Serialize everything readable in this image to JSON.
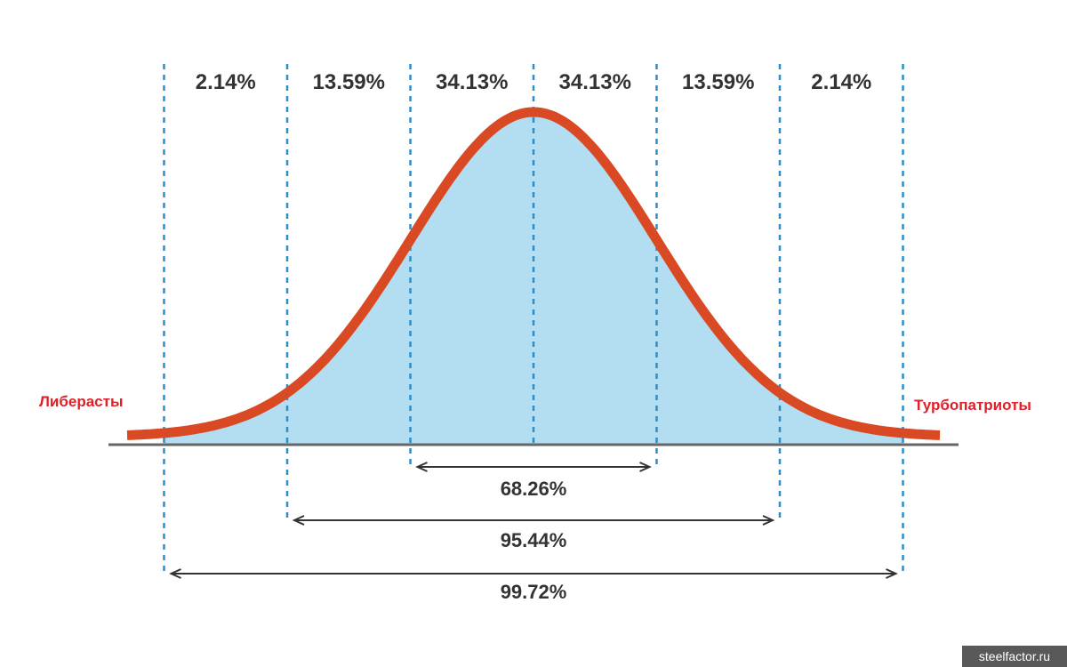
{
  "chart_data": {
    "type": "area",
    "distribution": "normal",
    "x_sigma_lines": [
      -3,
      -2,
      -1,
      0,
      1,
      2,
      3
    ],
    "xlim": [
      -3.3,
      3.3
    ],
    "bands": [
      {
        "from": -3,
        "to": -2,
        "label": "2.14%"
      },
      {
        "from": -2,
        "to": -1,
        "label": "13.59%"
      },
      {
        "from": -1,
        "to": 0,
        "label": "34.13%"
      },
      {
        "from": 0,
        "to": 1,
        "label": "34.13%"
      },
      {
        "from": 1,
        "to": 2,
        "label": "13.59%"
      },
      {
        "from": 2,
        "to": 3,
        "label": "2.14%"
      }
    ],
    "ranges": [
      {
        "from": -1,
        "to": 1,
        "label": "68.26%"
      },
      {
        "from": -2,
        "to": 2,
        "label": "95.44%"
      },
      {
        "from": -3,
        "to": 3,
        "label": "99.72%"
      }
    ],
    "left_label": "Либерасты",
    "right_label": "Турбопатриоты",
    "curve_color": "#d94a24",
    "fill_color": "#b3def2",
    "line_color": "#2d8fc9",
    "label_color": "#e01f26"
  },
  "watermark": "steelfactor.ru"
}
